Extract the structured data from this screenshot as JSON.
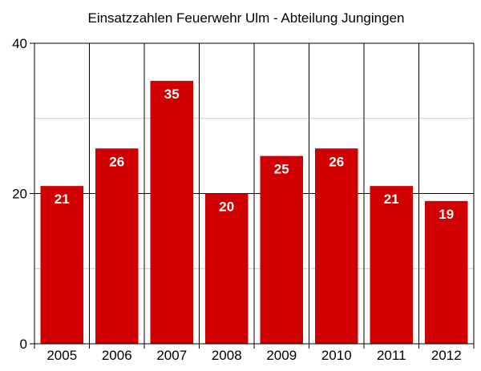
{
  "chart_data": {
    "type": "bar",
    "title": "Einsatzzahlen Feuerwehr Ulm - Abteilung Jungingen",
    "xlabel": "",
    "ylabel": "",
    "categories": [
      "2005",
      "2006",
      "2007",
      "2008",
      "2009",
      "2010",
      "2011",
      "2012"
    ],
    "values": [
      21,
      26,
      35,
      20,
      25,
      26,
      21,
      19
    ],
    "data_labels": [
      "21",
      "26",
      "35",
      "20",
      "25",
      "26",
      "21",
      "19"
    ],
    "ylim": [
      0,
      40
    ],
    "y_ticks": [
      0,
      20,
      40
    ],
    "y_tick_labels": [
      "0",
      "20",
      "40"
    ],
    "minor_gridlines": [
      10,
      30
    ],
    "grid": true,
    "legend": "none",
    "colors": {
      "bar": "#d00000",
      "label": "#ffffff",
      "axis": "#000000",
      "major_grid": "#000000",
      "minor_grid": "#c8c8c8",
      "category_divider": "#000000"
    }
  }
}
